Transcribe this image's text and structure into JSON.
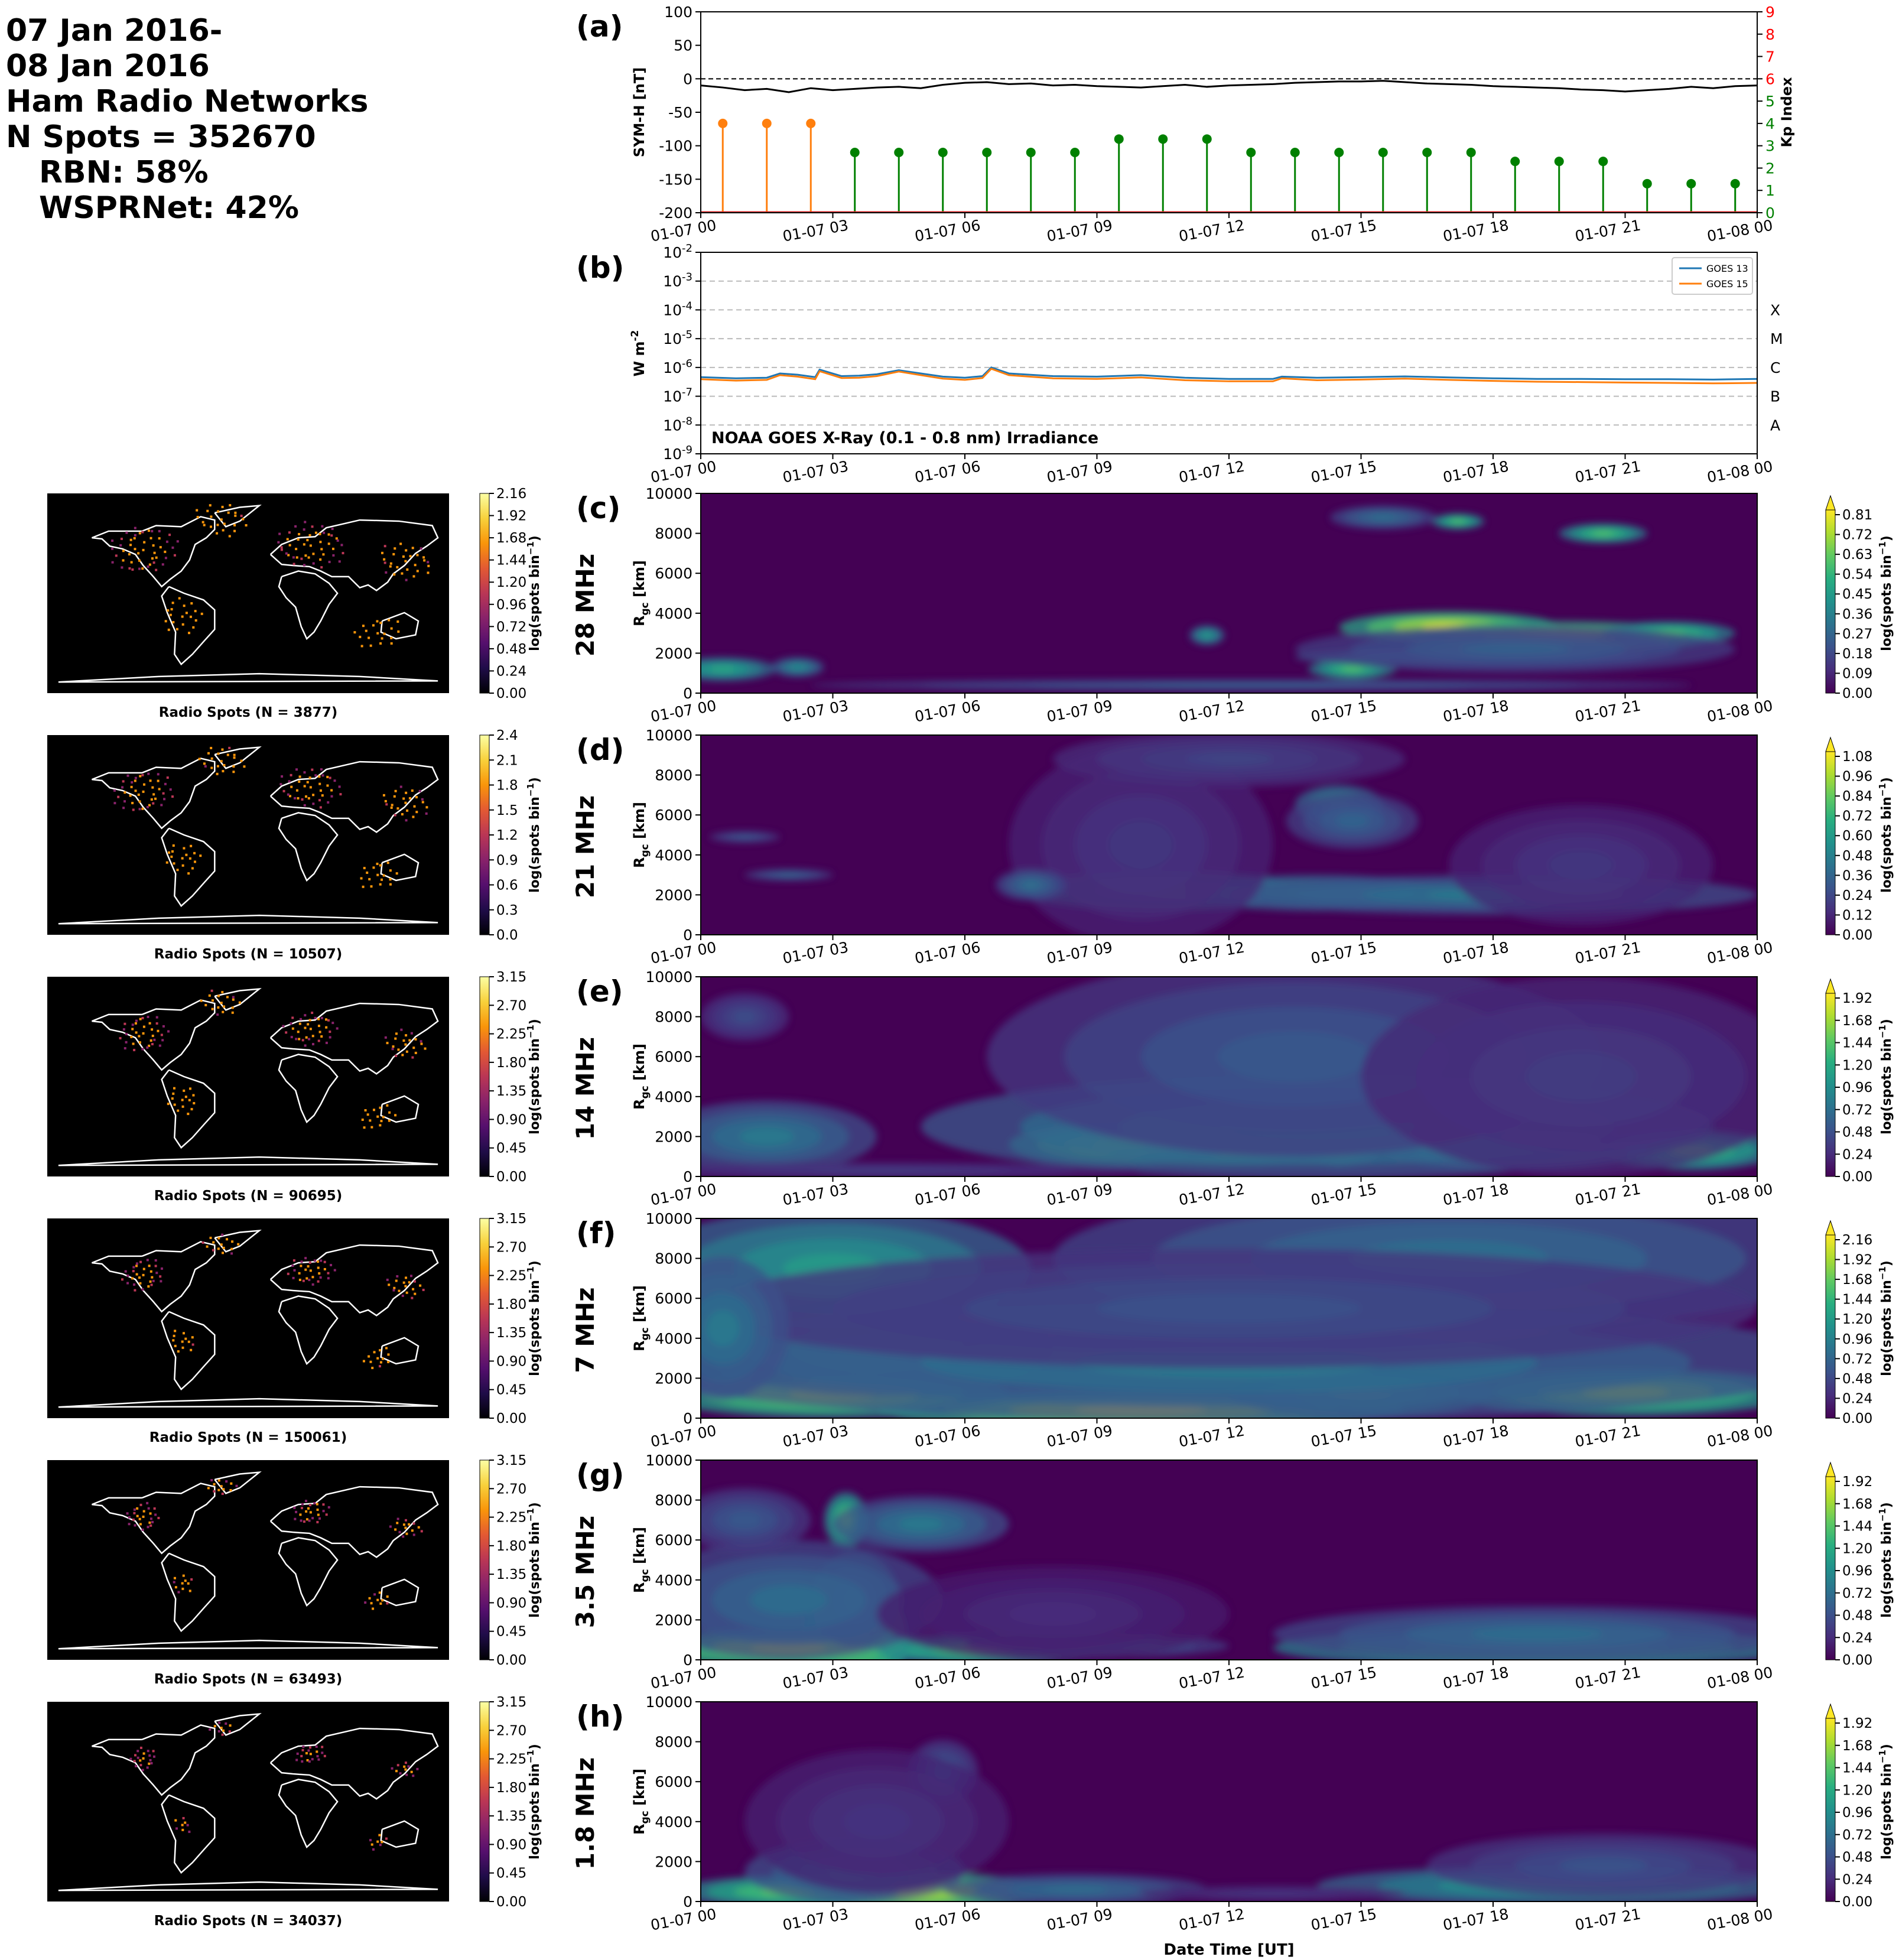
{
  "header": {
    "line1": "07 Jan 2016-",
    "line2": "08 Jan 2016",
    "line3": "Ham Radio Networks",
    "line4": "N Spots = 352670",
    "line5": "RBN: 58%",
    "line6": "WSPRNet: 42%"
  },
  "time_ticks": [
    "01-07 00",
    "01-07 03",
    "01-07 06",
    "01-07 09",
    "01-07 12",
    "01-07 15",
    "01-07 18",
    "01-07 21",
    "01-08 00"
  ],
  "xlabel": "Date Time [UT]",
  "chart_data": [
    {
      "id": "a",
      "panel_label": "(a)",
      "type": "line",
      "ylabel_left": "SYM-H [nT]",
      "ylabel_right": "Kp Index",
      "ylim_left": [
        -200,
        100
      ],
      "yticks_left": [
        "100",
        "50",
        "0",
        "-50",
        "-100",
        "-150",
        "-200"
      ],
      "ylim_right": [
        0,
        9
      ],
      "yticks_right": [
        "0",
        "1",
        "2",
        "3",
        "4",
        "5",
        "6",
        "7",
        "8",
        "9"
      ],
      "right_tick_colors_red_from": 6,
      "xlim_hours": [
        0,
        24
      ],
      "reference_line_y": 0,
      "symh": {
        "color": "#000000",
        "x": [
          0,
          0.5,
          1,
          1.5,
          2,
          2.5,
          3,
          3.5,
          4,
          4.5,
          5,
          5.5,
          6,
          6.5,
          7,
          7.5,
          8,
          8.5,
          9,
          9.5,
          10,
          10.5,
          11,
          11.5,
          12,
          12.5,
          13,
          13.5,
          14,
          14.5,
          15,
          15.5,
          16,
          16.5,
          17,
          17.5,
          18,
          18.5,
          19,
          19.5,
          20,
          20.5,
          21,
          21.5,
          22,
          22.5,
          23,
          23.5,
          24
        ],
        "y": [
          -10,
          -13,
          -17,
          -15,
          -20,
          -14,
          -17,
          -15,
          -13,
          -12,
          -14,
          -9,
          -6,
          -5,
          -8,
          -7,
          -10,
          -9,
          -11,
          -12,
          -13,
          -11,
          -9,
          -12,
          -10,
          -9,
          -8,
          -6,
          -5,
          -4,
          -4,
          -3,
          -5,
          -7,
          -8,
          -9,
          -11,
          -12,
          -13,
          -14,
          -16,
          -17,
          -19,
          -17,
          -15,
          -12,
          -14,
          -11,
          -10
        ]
      },
      "kp": {
        "x": [
          0.5,
          1.5,
          2.5,
          3.5,
          4.5,
          5.5,
          6.5,
          7.5,
          8.5,
          9.5,
          10.5,
          11.5,
          12.5,
          13.5,
          14.5,
          15.5,
          16.5,
          17.5,
          18.5,
          19.5,
          20.5,
          21.5,
          22.5,
          23.5
        ],
        "values": [
          4,
          4,
          4,
          2.7,
          2.7,
          2.7,
          2.7,
          2.7,
          2.7,
          3.3,
          3.3,
          3.3,
          2.7,
          2.7,
          2.7,
          2.7,
          2.7,
          2.7,
          2.3,
          2.3,
          2.3,
          1.3,
          1.3,
          1.3
        ],
        "colors": [
          "#ff7f0e",
          "#ff7f0e",
          "#ff7f0e",
          "#008000",
          "#008000",
          "#008000",
          "#008000",
          "#008000",
          "#008000",
          "#008000",
          "#008000",
          "#008000",
          "#008000",
          "#008000",
          "#008000",
          "#008000",
          "#008000",
          "#008000",
          "#008000",
          "#008000",
          "#008000",
          "#008000",
          "#008000",
          "#008000"
        ]
      }
    },
    {
      "id": "b",
      "panel_label": "(b)",
      "type": "line",
      "ylabel": "W m^-2",
      "yscale": "log",
      "ylim_exp": [
        -9,
        -2
      ],
      "yticks": [
        "10^-9",
        "10^-8",
        "10^-7",
        "10^-6",
        "10^-5",
        "10^-4",
        "10^-3",
        "10^-2"
      ],
      "class_labels": [
        "A",
        "B",
        "C",
        "M",
        "X"
      ],
      "annotation": "NOAA GOES X-Ray (0.1 - 0.8 nm) Irradiance",
      "legend_position": "upper-right",
      "series": [
        {
          "name": "GOES 13",
          "color": "#1f77b4",
          "x": [
            0,
            0.8,
            1.5,
            1.8,
            2.2,
            2.6,
            2.7,
            3.2,
            3.6,
            4.0,
            4.5,
            5.0,
            5.5,
            6.0,
            6.4,
            6.6,
            7.0,
            8.0,
            9.0,
            10.0,
            11.0,
            12.0,
            13.0,
            13.2,
            14.0,
            15.0,
            16.0,
            17.0,
            18.0,
            19.0,
            20.0,
            21.0,
            22.0,
            23.0,
            24.0
          ],
          "y": [
            4.6e-07,
            4.2e-07,
            4.4e-07,
            6.2e-07,
            5.6e-07,
            4.6e-07,
            8.4e-07,
            5e-07,
            5.2e-07,
            5.8e-07,
            8e-07,
            6.2e-07,
            4.8e-07,
            4.4e-07,
            5e-07,
            1e-06,
            6.2e-07,
            5e-07,
            4.8e-07,
            5.4e-07,
            4.4e-07,
            4e-07,
            4e-07,
            4.8e-07,
            4.4e-07,
            4.6e-07,
            4.9e-07,
            4.5e-07,
            4.2e-07,
            4e-07,
            4e-07,
            3.9e-07,
            3.9e-07,
            3.8e-07,
            4e-07
          ]
        },
        {
          "name": "GOES 15",
          "color": "#ff7f0e",
          "x": [
            0,
            0.8,
            1.5,
            1.8,
            2.2,
            2.6,
            2.7,
            3.2,
            3.6,
            4.0,
            4.5,
            5.0,
            5.5,
            6.0,
            6.4,
            6.6,
            7.0,
            8.0,
            9.0,
            10.0,
            11.0,
            12.0,
            13.0,
            13.2,
            14.0,
            15.0,
            16.0,
            17.0,
            18.0,
            19.0,
            20.0,
            21.0,
            22.0,
            23.0,
            24.0
          ],
          "y": [
            3.9e-07,
            3.5e-07,
            3.7e-07,
            5.4e-07,
            4.8e-07,
            3.9e-07,
            7.4e-07,
            4.3e-07,
            4.4e-07,
            5e-07,
            7.2e-07,
            5.4e-07,
            4.1e-07,
            3.7e-07,
            4.3e-07,
            9e-07,
            5.4e-07,
            4.2e-07,
            4e-07,
            4.5e-07,
            3.6e-07,
            3.3e-07,
            3.3e-07,
            4.2e-07,
            3.6e-07,
            3.8e-07,
            4.1e-07,
            3.7e-07,
            3.4e-07,
            3.2e-07,
            3.1e-07,
            3e-07,
            2.9e-07,
            2.8e-07,
            2.9e-07
          ]
        }
      ]
    },
    {
      "id": "c",
      "panel_label": "(c)",
      "band": "28 MHz",
      "type": "heatmap",
      "ylabel": "R_gc [km]",
      "ylim": [
        0,
        10000
      ],
      "yticks": [
        "0",
        "2000",
        "4000",
        "6000",
        "8000",
        "10000"
      ],
      "cbar_label": "log(spots bin^-1)",
      "cbar_ticks": [
        "0.81",
        "0.72",
        "0.63",
        "0.54",
        "0.45",
        "0.36",
        "0.27",
        "0.18",
        "0.09",
        "0.00"
      ],
      "cbar_max": 0.81,
      "cbar_extend_top": true,
      "map_caption": "Radio Spots (N = 3877)",
      "map_cbar_ticks": [
        "2.16",
        "1.92",
        "1.68",
        "1.44",
        "1.20",
        "0.96",
        "0.72",
        "0.48",
        "0.24",
        "0.00"
      ],
      "blobs": [
        [
          0.5,
          1200,
          1.2,
          300,
          0.5
        ],
        [
          2.2,
          1300,
          0.6,
          250,
          0.4
        ],
        [
          17.0,
          3300,
          2.5,
          400,
          0.81
        ],
        [
          19.5,
          2800,
          3.5,
          400,
          0.81
        ],
        [
          22.0,
          3000,
          1.5,
          300,
          0.6
        ],
        [
          17.5,
          1800,
          4.0,
          250,
          0.35
        ],
        [
          14.8,
          1200,
          1.0,
          250,
          0.6
        ],
        [
          18.5,
          2200,
          5.0,
          600,
          0.25
        ],
        [
          17.2,
          8600,
          0.6,
          200,
          0.6
        ],
        [
          20.5,
          8000,
          1.0,
          250,
          0.6
        ],
        [
          12.5,
          400,
          10.0,
          150,
          0.25
        ],
        [
          11.5,
          2900,
          0.4,
          250,
          0.45
        ],
        [
          15.5,
          8800,
          1.2,
          300,
          0.3
        ]
      ]
    },
    {
      "id": "d",
      "panel_label": "(d)",
      "band": "21 MHz",
      "type": "heatmap",
      "ylabel": "R_gc [km]",
      "ylim": [
        0,
        10000
      ],
      "yticks": [
        "0",
        "2000",
        "4000",
        "6000",
        "8000",
        "10000"
      ],
      "cbar_label": "log(spots bin^-1)",
      "cbar_ticks": [
        "1.08",
        "0.96",
        "0.84",
        "0.72",
        "0.60",
        "0.48",
        "0.36",
        "0.24",
        "0.12",
        "0.00"
      ],
      "cbar_max": 1.08,
      "cbar_extend_top": true,
      "map_caption": "Radio Spots (N = 10507)",
      "map_cbar_ticks": [
        "2.4",
        "2.1",
        "1.8",
        "1.5",
        "1.2",
        "0.9",
        "0.6",
        "0.3",
        "0.0"
      ],
      "blobs": [
        [
          11.0,
          2100,
          2.0,
          300,
          1.08
        ],
        [
          10.5,
          2200,
          3.2,
          500,
          0.6
        ],
        [
          14.0,
          2100,
          3.0,
          450,
          0.55
        ],
        [
          18.0,
          2000,
          6.0,
          500,
          0.45
        ],
        [
          14.5,
          6500,
          1.0,
          500,
          0.6
        ],
        [
          14.8,
          5700,
          1.5,
          700,
          0.35
        ],
        [
          10.0,
          4500,
          3.0,
          2500,
          0.18
        ],
        [
          12.0,
          8800,
          4.0,
          700,
          0.22
        ],
        [
          2.0,
          3000,
          1.0,
          150,
          0.35
        ],
        [
          1.0,
          4900,
          0.8,
          150,
          0.3
        ],
        [
          20.0,
          3500,
          3.0,
          1500,
          0.18
        ],
        [
          7.5,
          2500,
          0.8,
          400,
          0.4
        ]
      ]
    },
    {
      "id": "e",
      "panel_label": "(e)",
      "band": "14 MHz",
      "type": "heatmap",
      "ylabel": "R_gc [km]",
      "ylim": [
        0,
        10000
      ],
      "yticks": [
        "0",
        "2000",
        "4000",
        "6000",
        "8000",
        "10000"
      ],
      "cbar_label": "log(spots bin^-1)",
      "cbar_ticks": [
        "1.92",
        "1.68",
        "1.44",
        "1.20",
        "0.96",
        "0.72",
        "0.48",
        "0.24",
        "0.00"
      ],
      "cbar_max": 1.92,
      "cbar_extend_top": true,
      "map_caption": "Radio Spots (N = 90695)",
      "map_cbar_ticks": [
        "3.15",
        "2.70",
        "2.25",
        "1.80",
        "1.35",
        "0.90",
        "0.45",
        "0.00"
      ],
      "blobs": [
        [
          12.0,
          1500,
          3.5,
          500,
          1.92
        ],
        [
          9.5,
          1600,
          2.5,
          550,
          1.7
        ],
        [
          14.5,
          1500,
          1.0,
          500,
          1.9
        ],
        [
          18.5,
          1300,
          3.0,
          500,
          1.1
        ],
        [
          22.5,
          1300,
          2.0,
          500,
          1.4
        ],
        [
          14.0,
          2500,
          9.0,
          1300,
          0.9
        ],
        [
          13.5,
          6000,
          7.0,
          2500,
          0.55
        ],
        [
          1.5,
          2000,
          2.5,
          900,
          0.8
        ],
        [
          1.0,
          8000,
          1.0,
          600,
          0.45
        ],
        [
          4.0,
          300,
          6.0,
          200,
          0.35
        ],
        [
          20.0,
          5000,
          5.0,
          2500,
          0.35
        ]
      ]
    },
    {
      "id": "f",
      "panel_label": "(f)",
      "band": "7 MHz",
      "type": "heatmap",
      "ylabel": "R_gc [km]",
      "ylim": [
        0,
        10000
      ],
      "yticks": [
        "0",
        "2000",
        "4000",
        "6000",
        "8000",
        "10000"
      ],
      "cbar_label": "log(spots bin^-1)",
      "cbar_ticks": [
        "2.16",
        "1.92",
        "1.68",
        "1.44",
        "1.20",
        "0.96",
        "0.72",
        "0.48",
        "0.24",
        "0.00"
      ],
      "cbar_max": 2.16,
      "cbar_extend_top": true,
      "map_caption": "Radio Spots (N = 150061)",
      "map_cbar_ticks": [
        "3.15",
        "2.70",
        "2.25",
        "1.80",
        "1.35",
        "0.90",
        "0.45",
        "0.00"
      ],
      "blobs": [
        [
          10.0,
          400,
          6.0,
          500,
          2.16
        ],
        [
          3.0,
          1200,
          4.0,
          600,
          2.0
        ],
        [
          21.0,
          1300,
          4.0,
          600,
          1.9
        ],
        [
          15.0,
          1200,
          3.0,
          600,
          1.5
        ],
        [
          4.0,
          3500,
          4.0,
          1200,
          1.35
        ],
        [
          12.0,
          2800,
          14.0,
          1500,
          0.9
        ],
        [
          3.0,
          7500,
          4.5,
          1500,
          1.2
        ],
        [
          17.0,
          8000,
          9.0,
          1800,
          0.8
        ],
        [
          12.0,
          5500,
          12.0,
          1500,
          0.55
        ],
        [
          0.5,
          4500,
          1.5,
          1800,
          0.9
        ]
      ]
    },
    {
      "id": "g",
      "panel_label": "(g)",
      "band": "3.5 MHz",
      "type": "heatmap",
      "ylabel": "R_gc [km]",
      "ylim": [
        0,
        10000
      ],
      "yticks": [
        "0",
        "2000",
        "4000",
        "6000",
        "8000",
        "10000"
      ],
      "cbar_label": "log(spots bin^-1)",
      "cbar_ticks": [
        "1.92",
        "1.68",
        "1.44",
        "1.20",
        "0.96",
        "0.72",
        "0.48",
        "0.24",
        "0.00"
      ],
      "cbar_max": 1.92,
      "cbar_extend_top": true,
      "map_caption": "Radio Spots (N = 63493)",
      "map_cbar_ticks": [
        "3.15",
        "2.70",
        "2.25",
        "1.80",
        "1.35",
        "0.90",
        "0.45",
        "0.00"
      ],
      "blobs": [
        [
          3.5,
          1000,
          1.2,
          1500,
          1.92
        ],
        [
          2.0,
          600,
          3.5,
          500,
          1.8
        ],
        [
          6.5,
          500,
          2.5,
          400,
          1.5
        ],
        [
          3.3,
          7000,
          0.5,
          700,
          1.5
        ],
        [
          5.0,
          6800,
          2.0,
          700,
          0.8
        ],
        [
          3.5,
          3000,
          1.0,
          1200,
          1.1
        ],
        [
          19.0,
          600,
          6.0,
          500,
          1.4
        ],
        [
          19.0,
          1300,
          6.0,
          700,
          0.7
        ],
        [
          2.0,
          3000,
          3.5,
          1500,
          0.7
        ],
        [
          1.0,
          7000,
          1.5,
          800,
          0.55
        ],
        [
          9.0,
          700,
          3.0,
          300,
          0.6
        ],
        [
          8.0,
          2300,
          4.0,
          1200,
          0.25
        ]
      ]
    },
    {
      "id": "h",
      "panel_label": "(h)",
      "band": "1.8 MHz",
      "type": "heatmap",
      "ylabel": "R_gc [km]",
      "ylim": [
        0,
        10000
      ],
      "yticks": [
        "0",
        "2000",
        "4000",
        "6000",
        "8000",
        "10000"
      ],
      "cbar_label": "log(spots bin^-1)",
      "cbar_ticks": [
        "1.92",
        "1.68",
        "1.44",
        "1.20",
        "0.96",
        "0.72",
        "0.48",
        "0.24",
        "0.00"
      ],
      "cbar_max": 1.92,
      "cbar_extend_top": true,
      "map_caption": "Radio Spots (N = 34037)",
      "map_cbar_ticks": [
        "3.15",
        "2.70",
        "2.25",
        "1.80",
        "1.35",
        "0.90",
        "0.45",
        "0.00"
      ],
      "blobs": [
        [
          4.5,
          500,
          3.5,
          500,
          1.92
        ],
        [
          2.0,
          500,
          2.5,
          400,
          1.5
        ],
        [
          3.5,
          1500,
          2.5,
          800,
          0.8
        ],
        [
          5.5,
          6500,
          0.8,
          800,
          0.55
        ],
        [
          4.0,
          4000,
          3.0,
          1800,
          0.3
        ],
        [
          19.5,
          800,
          5.5,
          500,
          1.1
        ],
        [
          20.5,
          1800,
          4.0,
          800,
          0.5
        ],
        [
          8.5,
          600,
          3.0,
          400,
          0.7
        ],
        [
          13.0,
          400,
          3.0,
          200,
          0.3
        ]
      ]
    }
  ]
}
